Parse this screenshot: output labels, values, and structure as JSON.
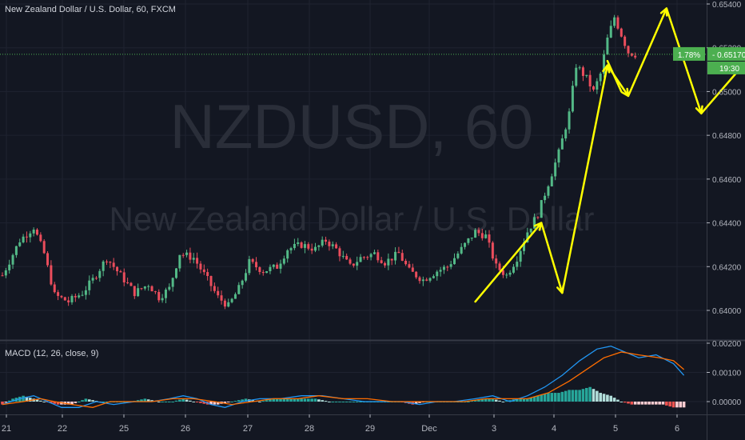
{
  "header": {
    "symbol_title": "New Zealand Dollar / U.S. Dollar, 60, FXCM",
    "watermark_symbol": "NZDUSD, 60",
    "watermark_name": "New Zealand Dollar / U.S. Dollar"
  },
  "price_badge": {
    "change": "1.78%",
    "price": "0.65170",
    "countdown": "19:30"
  },
  "macd": {
    "label": "MACD (12, 26, close, 9)"
  },
  "colors": {
    "background": "#131722",
    "grid": "#1f2330",
    "text": "#b2b5be",
    "up": "#26a69a",
    "up_candle": "#53b987",
    "down": "#ef5350",
    "down_candle": "#eb4d5c",
    "annotation": "#ffff00",
    "macd_line": "#2196f3",
    "signal_line": "#ff6d00",
    "badge": "#4caf50"
  },
  "chart_data": [
    {
      "type": "candlestick",
      "symbol": "NZDUSD",
      "interval": "60",
      "y_ticks": [
        "0.65400",
        "0.65200",
        "0.65000",
        "0.64800",
        "0.64600",
        "0.64400",
        "0.64200",
        "0.64000"
      ],
      "ylim": [
        0.6392,
        0.6542
      ],
      "x_ticks": [
        "21",
        "22",
        "25",
        "26",
        "27",
        "28",
        "29",
        "Dec",
        "3",
        "4",
        "5",
        "6"
      ],
      "current_price": 0.6517,
      "close_path": [
        [
          0,
          0.6416
        ],
        [
          5,
          0.6432
        ],
        [
          9,
          0.6438
        ],
        [
          12,
          0.6426
        ],
        [
          15,
          0.6407
        ],
        [
          19,
          0.6404
        ],
        [
          23,
          0.6408
        ],
        [
          26,
          0.6414
        ],
        [
          30,
          0.6424
        ],
        [
          34,
          0.6416
        ],
        [
          38,
          0.6408
        ],
        [
          42,
          0.6412
        ],
        [
          45,
          0.6406
        ],
        [
          48,
          0.641
        ],
        [
          51,
          0.6426
        ],
        [
          55,
          0.6424
        ],
        [
          59,
          0.6414
        ],
        [
          62,
          0.6406
        ],
        [
          65,
          0.6402
        ],
        [
          68,
          0.641
        ],
        [
          71,
          0.6422
        ],
        [
          75,
          0.6418
        ],
        [
          79,
          0.642
        ],
        [
          82,
          0.6428
        ],
        [
          86,
          0.643
        ],
        [
          90,
          0.6428
        ],
        [
          93,
          0.6432
        ],
        [
          96,
          0.6428
        ],
        [
          100,
          0.642
        ],
        [
          103,
          0.6424
        ],
        [
          107,
          0.6426
        ],
        [
          110,
          0.6422
        ],
        [
          114,
          0.6426
        ],
        [
          117,
          0.6418
        ],
        [
          121,
          0.6414
        ],
        [
          125,
          0.6418
        ],
        [
          128,
          0.642
        ],
        [
          132,
          0.6428
        ],
        [
          136,
          0.6436
        ],
        [
          139,
          0.6434
        ],
        [
          142,
          0.642
        ],
        [
          145,
          0.6416
        ],
        [
          148,
          0.6424
        ],
        [
          151,
          0.6436
        ],
        [
          154,
          0.6444
        ],
        [
          157,
          0.6458
        ],
        [
          160,
          0.6472
        ],
        [
          163,
          0.649
        ],
        [
          165,
          0.6512
        ],
        [
          168,
          0.6506
        ],
        [
          170,
          0.65
        ],
        [
          172,
          0.6508
        ],
        [
          174,
          0.6524
        ],
        [
          176,
          0.6534
        ],
        [
          178,
          0.6526
        ],
        [
          180,
          0.6518
        ],
        [
          182,
          0.6517
        ]
      ],
      "annotations": [
        {
          "shape": "zigzag-arrow",
          "color": "#ffff00",
          "points": [
            [
              136,
              0.6404
            ],
            [
              155,
              0.644
            ],
            [
              161,
              0.6408
            ],
            [
              174,
              0.6512
            ],
            [
              180,
              0.6498
            ],
            [
              191,
              0.6538
            ],
            [
              201,
              0.649
            ],
            [
              226,
              0.6536
            ]
          ]
        },
        {
          "shape": "line",
          "color": "#ffff00",
          "points": [
            [
              174,
              0.6514
            ],
            [
              178,
              0.65
            ]
          ]
        }
      ]
    },
    {
      "type": "histogram+line",
      "title": "MACD (12, 26, close, 9)",
      "y_ticks": [
        "0.00200",
        "0.00100",
        "0.00000"
      ],
      "ylim": [
        -0.0004,
        0.0021
      ],
      "series": [
        {
          "role": "macd",
          "points": [
            [
              0,
              -0.0001
            ],
            [
              5,
              0.0001
            ],
            [
              9,
              0.0002
            ],
            [
              13,
              0.0
            ],
            [
              17,
              -0.0002
            ],
            [
              22,
              -0.0002
            ],
            [
              27,
              0.0
            ],
            [
              32,
              -0.0001
            ],
            [
              38,
              0.0
            ],
            [
              43,
              0.0
            ],
            [
              48,
              0.0001
            ],
            [
              52,
              0.0002
            ],
            [
              56,
              0.0001
            ],
            [
              60,
              -0.0001
            ],
            [
              64,
              -0.0002
            ],
            [
              69,
              0.0
            ],
            [
              74,
              0.0001
            ],
            [
              80,
              0.0001
            ],
            [
              86,
              0.0002
            ],
            [
              92,
              0.0002
            ],
            [
              98,
              0.0001
            ],
            [
              104,
              0.0
            ],
            [
              110,
              0.0
            ],
            [
              115,
              0.0
            ],
            [
              120,
              -0.0001
            ],
            [
              125,
              0.0
            ],
            [
              130,
              0.0
            ],
            [
              136,
              0.0001
            ],
            [
              141,
              0.0002
            ],
            [
              146,
              0.0
            ],
            [
              151,
              0.0002
            ],
            [
              156,
              0.0005
            ],
            [
              161,
              0.0009
            ],
            [
              166,
              0.0014
            ],
            [
              171,
              0.0018
            ],
            [
              175,
              0.0019
            ],
            [
              179,
              0.0017
            ],
            [
              183,
              0.0015
            ],
            [
              188,
              0.0016
            ],
            [
              193,
              0.0013
            ],
            [
              196,
              0.0009
            ]
          ]
        },
        {
          "role": "signal",
          "points": [
            [
              0,
              -0.0001
            ],
            [
              6,
              0.0
            ],
            [
              11,
              0.0001
            ],
            [
              15,
              0.0
            ],
            [
              20,
              -0.0001
            ],
            [
              26,
              -0.0002
            ],
            [
              31,
              0.0
            ],
            [
              37,
              0.0
            ],
            [
              43,
              0.0
            ],
            [
              49,
              0.0001
            ],
            [
              55,
              0.0001
            ],
            [
              61,
              0.0
            ],
            [
              66,
              -0.0001
            ],
            [
              72,
              0.0
            ],
            [
              78,
              0.0001
            ],
            [
              85,
              0.0001
            ],
            [
              91,
              0.0002
            ],
            [
              98,
              0.0001
            ],
            [
              105,
              0.0001
            ],
            [
              112,
              0.0
            ],
            [
              119,
              0.0
            ],
            [
              126,
              0.0
            ],
            [
              133,
              0.0
            ],
            [
              139,
              0.0001
            ],
            [
              145,
              0.0001
            ],
            [
              151,
              0.0001
            ],
            [
              157,
              0.0003
            ],
            [
              163,
              0.0007
            ],
            [
              168,
              0.0011
            ],
            [
              173,
              0.0015
            ],
            [
              178,
              0.0017
            ],
            [
              183,
              0.0016
            ],
            [
              189,
              0.0015
            ],
            [
              193,
              0.0014
            ],
            [
              196,
              0.0011
            ]
          ]
        },
        {
          "role": "histogram",
          "points": [
            [
              0,
              -0.0001
            ],
            [
              3,
              0.0001
            ],
            [
              6,
              0.0002
            ],
            [
              9,
              0.0001
            ],
            [
              12,
              0.0
            ],
            [
              16,
              -0.0001
            ],
            [
              20,
              -0.0001
            ],
            [
              24,
              0.0001
            ],
            [
              28,
              0.0
            ],
            [
              33,
              0.0
            ],
            [
              37,
              0.0
            ],
            [
              41,
              0.0001
            ],
            [
              45,
              0.0
            ],
            [
              49,
              0.0
            ],
            [
              52,
              0.0001
            ],
            [
              55,
              0.0
            ],
            [
              59,
              -0.0001
            ],
            [
              62,
              -0.0001
            ],
            [
              66,
              0.0
            ],
            [
              70,
              0.0001
            ],
            [
              74,
              0.0
            ],
            [
              78,
              0.0001
            ],
            [
              82,
              0.0001
            ],
            [
              86,
              0.0001
            ],
            [
              90,
              0.0001
            ],
            [
              94,
              0.0
            ],
            [
              98,
              0.0
            ],
            [
              102,
              0.0
            ],
            [
              106,
              0.0
            ],
            [
              110,
              0.0
            ],
            [
              114,
              0.0
            ],
            [
              118,
              -0.0001
            ],
            [
              122,
              0.0
            ],
            [
              126,
              0.0
            ],
            [
              130,
              0.0
            ],
            [
              134,
              0.0
            ],
            [
              138,
              0.0001
            ],
            [
              141,
              0.0001
            ],
            [
              144,
              0.0
            ],
            [
              148,
              0.0001
            ],
            [
              151,
              0.0001
            ],
            [
              154,
              0.0002
            ],
            [
              157,
              0.0003
            ],
            [
              160,
              0.0003
            ],
            [
              163,
              0.0004
            ],
            [
              166,
              0.0004
            ],
            [
              169,
              0.0005
            ],
            [
              172,
              0.0003
            ],
            [
              175,
              0.0002
            ],
            [
              178,
              0.0
            ],
            [
              181,
              -0.0001
            ],
            [
              184,
              -0.0001
            ],
            [
              187,
              -0.0001
            ],
            [
              190,
              -0.0001
            ],
            [
              193,
              -0.0002
            ],
            [
              196,
              -0.0002
            ]
          ]
        }
      ]
    }
  ]
}
